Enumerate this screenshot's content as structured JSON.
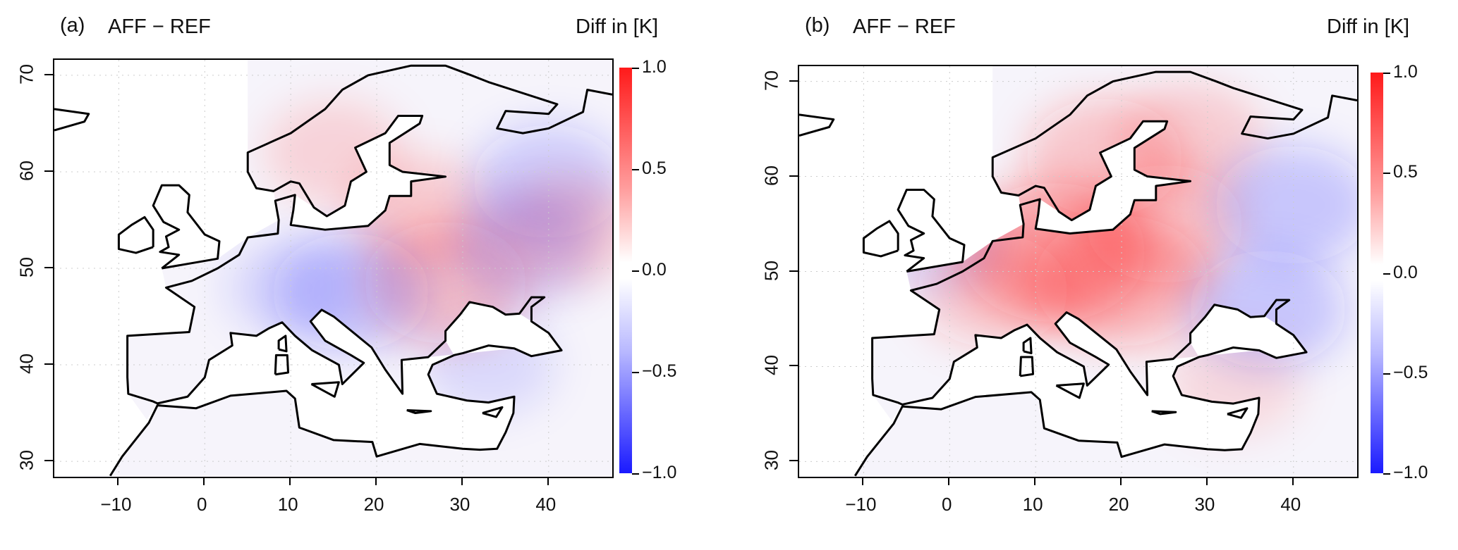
{
  "panels": [
    {
      "id": "a",
      "label": "(a)",
      "title": "AFF − REF",
      "unit_label": "Diff in [K]",
      "lat_ticks": [
        "70",
        "60",
        "50",
        "40",
        "30"
      ],
      "lon_ticks": [
        "−10",
        "0",
        "10",
        "20",
        "30",
        "40"
      ],
      "colorbar_ticks": [
        "1.0",
        "0.5",
        "0.0",
        "−0.5",
        "−1.0"
      ]
    },
    {
      "id": "b",
      "label": "(b)",
      "title": "AFF − REF",
      "unit_label": "Diff in [K]",
      "lat_ticks": [
        "70",
        "60",
        "50",
        "40",
        "30"
      ],
      "lon_ticks": [
        "−10",
        "0",
        "10",
        "20",
        "30",
        "40"
      ],
      "colorbar_ticks": [
        "1.0",
        "0.5",
        "0.0",
        "−0.5",
        "−1.0"
      ]
    }
  ],
  "colors": {
    "positive": "#ff1a1a",
    "negative": "#1a1aff",
    "zero": "#ffffff",
    "coast": "#000000"
  },
  "chart_data": {
    "type": "heatmap",
    "xlabel": "",
    "ylabel": "",
    "xlim": [
      -17.5,
      47.4
    ],
    "ylim": [
      28.4,
      71.6
    ],
    "x_ticks": [
      -10,
      0,
      10,
      20,
      30,
      40
    ],
    "y_ticks": [
      30,
      40,
      50,
      60,
      70
    ],
    "colorbar": {
      "label": "Diff in [K]",
      "range": [
        -1.0,
        1.0
      ],
      "ticks": [
        1.0,
        0.5,
        0.0,
        -0.5,
        -1.0
      ]
    },
    "panels": [
      {
        "label": "(a)",
        "title": "AFF − REF",
        "patches": [
          {
            "lon": 28,
            "lat": 48.5,
            "value": 0.45
          },
          {
            "lon": 25,
            "lat": 56,
            "value": 0.3
          },
          {
            "lon": 15,
            "lat": 62,
            "value": 0.25
          },
          {
            "lon": 17,
            "lat": 47.5,
            "value": -0.4
          },
          {
            "lon": 40,
            "lat": 59,
            "value": -0.35
          },
          {
            "lon": 37,
            "lat": 52,
            "value": -0.3
          },
          {
            "lon": 10,
            "lat": 48,
            "value": -0.2
          },
          {
            "lon": 42,
            "lat": 54,
            "value": 0.3
          },
          {
            "lon": 33,
            "lat": 40,
            "value": -0.2
          }
        ]
      },
      {
        "label": "(b)",
        "title": "AFF − REF",
        "patches": [
          {
            "lon": 12,
            "lat": 52,
            "value": 0.65
          },
          {
            "lon": 20,
            "lat": 49,
            "value": 0.55
          },
          {
            "lon": 25,
            "lat": 55,
            "value": 0.4
          },
          {
            "lon": 18,
            "lat": 62,
            "value": 0.4
          },
          {
            "lon": 5,
            "lat": 48,
            "value": 0.35
          },
          {
            "lon": 28,
            "lat": 64,
            "value": 0.3
          },
          {
            "lon": 40,
            "lat": 57,
            "value": -0.4
          },
          {
            "lon": 37,
            "lat": 46,
            "value": -0.4
          },
          {
            "lon": -2,
            "lat": 53,
            "value": -0.2
          },
          {
            "lon": 33,
            "lat": 38,
            "value": 0.2
          }
        ]
      }
    ]
  }
}
